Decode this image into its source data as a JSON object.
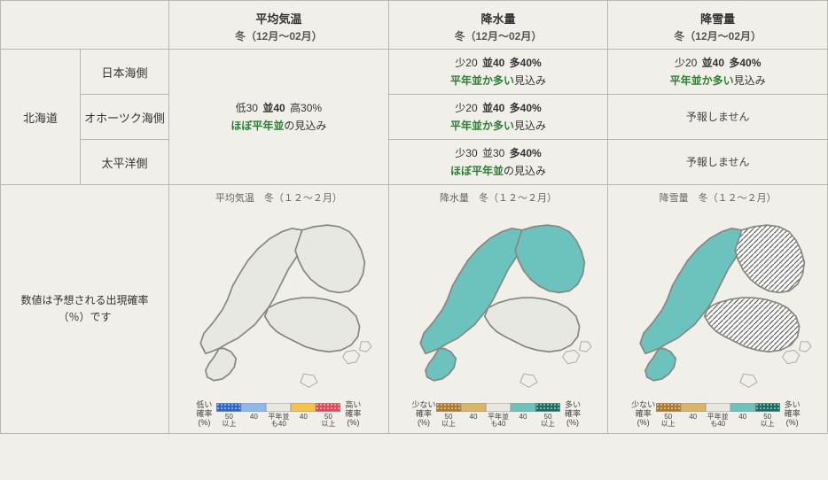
{
  "columns": [
    {
      "title": "平均気温",
      "season": "冬（12月～02月）",
      "map_title": "平均気温　冬（１２～２月）"
    },
    {
      "title": "降水量",
      "season": "冬（12月～02月）",
      "map_title": "降水量　冬（１２～２月）"
    },
    {
      "title": "降雪量",
      "season": "冬（12月～02月）",
      "map_title": "降雪量　冬（１２～２月）"
    }
  ],
  "region": "北海道",
  "subregions": [
    "日本海側",
    "オホーツク海側",
    "太平洋側"
  ],
  "forecasts": {
    "temp_all": {
      "probs": {
        "low": "低30",
        "mid": "並40",
        "high": "高30%"
      },
      "bold": "mid",
      "summary_em": "ほぼ平年並",
      "summary_plain": "の見込み"
    },
    "precip": [
      {
        "probs": {
          "low": "少20",
          "mid": "並40",
          "high": "多40%"
        },
        "bold": "mid_high",
        "summary_em": "平年並か多い",
        "summary_plain": "見込み"
      },
      {
        "probs": {
          "low": "少20",
          "mid": "並40",
          "high": "多40%"
        },
        "bold": "mid_high",
        "summary_em": "平年並か多い",
        "summary_plain": "見込み"
      },
      {
        "probs": {
          "low": "少30",
          "mid": "並30",
          "high": "多40%"
        },
        "bold": "high",
        "summary_em": "ほぼ平年並",
        "summary_plain": "の見込み"
      }
    ],
    "snow": [
      {
        "probs": {
          "low": "少20",
          "mid": "並40",
          "high": "多40%"
        },
        "bold": "mid_high",
        "summary_em": "平年並か多い",
        "summary_plain": "見込み"
      },
      {
        "text": "予報しません"
      },
      {
        "text": "予報しません"
      }
    ]
  },
  "note": {
    "line1": "数値は予想される出現確率",
    "line2": "（％）です"
  },
  "map_colors": {
    "base_gray": "#e8e8e2",
    "teal": "#6cc3bd",
    "border": "#a8a8a0",
    "border_strong": "#888880",
    "hatch_bg": "#ffffff"
  },
  "maps": {
    "temp": {
      "nihonkai": "gray",
      "okhotsk": "gray",
      "pacific": "gray"
    },
    "precip": {
      "nihonkai": "teal",
      "okhotsk": "teal",
      "pacific": "gray"
    },
    "snow": {
      "nihonkai": "teal",
      "okhotsk": "hatch",
      "pacific": "hatch"
    }
  },
  "legend_temp": {
    "left_label": "低い\n確率\n(%)",
    "right_label": "高い\n確率\n(%)",
    "swatches": [
      {
        "color": "#2b66d1",
        "pattern": "dots",
        "label": "50\n以上"
      },
      {
        "color": "#8fb9e8",
        "label": "40"
      },
      {
        "color": "#e8e8e2",
        "label": "平年並も40"
      },
      {
        "color": "#f6c34a",
        "label": "40"
      },
      {
        "color": "#e04a5a",
        "pattern": "dots",
        "label": "50\n以上"
      }
    ]
  },
  "legend_amount": {
    "left_label": "少ない\n確率\n(%)",
    "right_label": "多い\n確率\n(%)",
    "swatches": [
      {
        "color": "#b07a2a",
        "pattern": "dots",
        "label": "50\n以上"
      },
      {
        "color": "#d9b56a",
        "label": "40"
      },
      {
        "color": "#e8e8e2",
        "label": "平年並も40"
      },
      {
        "color": "#6cc3bd",
        "label": "40"
      },
      {
        "color": "#1a6e66",
        "pattern": "dots",
        "label": "50\n以上"
      }
    ]
  }
}
